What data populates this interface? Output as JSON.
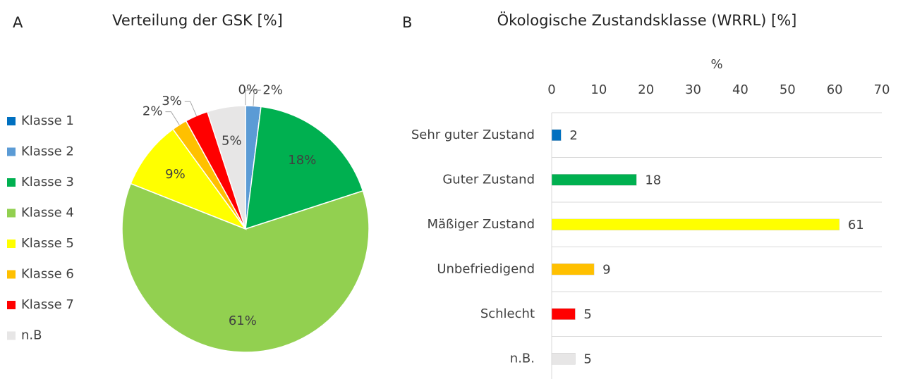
{
  "chart_data": [
    {
      "type": "pie",
      "panel": "A",
      "title": "Verteilung der GSK [%]",
      "categories": [
        "Klasse 1",
        "Klasse 2",
        "Klasse 3",
        "Klasse 4",
        "Klasse 5",
        "Klasse 6",
        "Klasse 7",
        "n.B"
      ],
      "values": [
        0,
        2,
        18,
        61,
        9,
        2,
        3,
        5
      ],
      "value_labels": [
        "0%",
        "2%",
        "18%",
        "61%",
        "9%",
        "2%",
        "3%",
        "5%"
      ],
      "colors": [
        "#0070c0",
        "#5b9bd5",
        "#00b050",
        "#92d050",
        "#ffff00",
        "#ffc000",
        "#ff0000",
        "#e7e6e6"
      ],
      "legend": "left"
    },
    {
      "type": "hbar",
      "panel": "B",
      "title": "Ökologische Zustandsklasse (WRRL) [%]",
      "x_label": "%",
      "categories": [
        "Sehr guter Zustand",
        "Guter Zustand",
        "Mäßiger Zustand",
        "Unbefriedigend",
        "Schlecht",
        "n.B."
      ],
      "values": [
        2,
        18,
        61,
        9,
        5,
        5
      ],
      "colors": [
        "#0070c0",
        "#00b050",
        "#ffff00",
        "#ffc000",
        "#ff0000",
        "#e7e6e6"
      ],
      "xlim": [
        0,
        70
      ],
      "xticks": [
        0,
        10,
        20,
        30,
        40,
        50,
        60,
        70
      ]
    }
  ]
}
